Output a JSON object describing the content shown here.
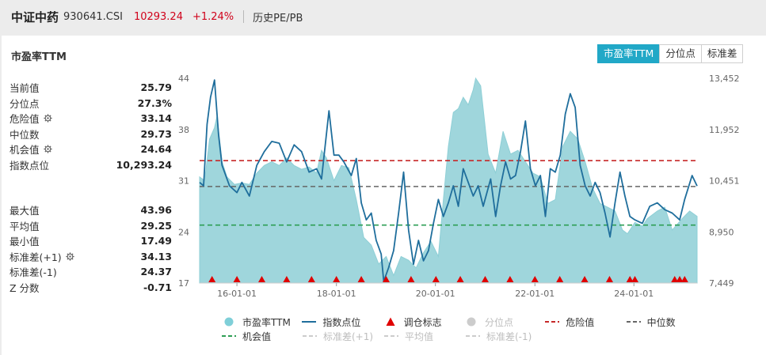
{
  "header": {
    "name": "中证中药",
    "code": "930641.CSI",
    "price": "10293.24",
    "change": "+1.24%",
    "tab": "历史PE/PB"
  },
  "panel": {
    "title": "市盈率TTM",
    "buttons": [
      "市盈率TTM",
      "分位点",
      "标准差"
    ],
    "active_button": "市盈率TTM"
  },
  "stats": {
    "top": [
      {
        "label": "当前值",
        "value": "25.79",
        "gear": false
      },
      {
        "label": "分位点",
        "value": "27.3%",
        "gear": false
      },
      {
        "label": "危险值",
        "value": "33.14",
        "gear": true
      },
      {
        "label": "中位数",
        "value": "29.73",
        "gear": false
      },
      {
        "label": "机会值",
        "value": "24.64",
        "gear": true
      },
      {
        "label": "指数点位",
        "value": "10,293.24",
        "gear": false
      }
    ],
    "bottom": [
      {
        "label": "最大值",
        "value": "43.96",
        "gear": false
      },
      {
        "label": "平均值",
        "value": "29.25",
        "gear": false
      },
      {
        "label": "最小值",
        "value": "17.49",
        "gear": false
      },
      {
        "label": "标准差(+1)",
        "value": "34.13",
        "gear": true
      },
      {
        "label": "标准差(-1)",
        "value": "24.37",
        "gear": false
      },
      {
        "label": "Z 分数",
        "value": "-0.71",
        "gear": false
      }
    ]
  },
  "legend": {
    "row1": [
      {
        "label": "市盈率TTM",
        "type": "dot",
        "color": "#7fcfd8",
        "dim": false
      },
      {
        "label": "指数点位",
        "type": "line",
        "color": "#1f6e9c",
        "dim": false
      },
      {
        "label": "调仓标志",
        "type": "triangle",
        "color": "#e00000",
        "dim": false
      },
      {
        "label": "分位点",
        "type": "dot",
        "color": "#cccccc",
        "dim": true
      },
      {
        "label": "危险值",
        "type": "dash",
        "color": "#c62828",
        "dim": false
      },
      {
        "label": "中位数",
        "type": "dash",
        "color": "#666666",
        "dim": false
      }
    ],
    "row2": [
      {
        "label": "机会值",
        "type": "dash",
        "color": "#2e9e55",
        "dim": false
      },
      {
        "label": "标准差(+1)",
        "type": "dash",
        "color": "#cccccc",
        "dim": true
      },
      {
        "label": "平均值",
        "type": "dash",
        "color": "#cccccc",
        "dim": true
      },
      {
        "label": "标准差(-1)",
        "type": "dash",
        "color": "#cccccc",
        "dim": true
      }
    ]
  },
  "chart_data": {
    "type": "area",
    "left_axis": {
      "ticks": [
        "44",
        "38",
        "31",
        "24",
        "17"
      ],
      "min": 17,
      "max": 44
    },
    "right_axis": {
      "ticks": [
        "13,452",
        "11,952",
        "10,451",
        "8,950",
        "7,449"
      ],
      "min": 7449,
      "max": 13452
    },
    "x_ticks": [
      {
        "label": "16-01-01",
        "t": 0.075
      },
      {
        "label": "18-01-01",
        "t": 0.275
      },
      {
        "label": "20-01-01",
        "t": 0.474
      },
      {
        "label": "22-01-01",
        "t": 0.674
      },
      {
        "label": "24-01-01",
        "t": 0.873
      }
    ],
    "reference_lines": [
      {
        "name": "危险值",
        "value": 33.14,
        "color": "#c62828"
      },
      {
        "name": "中位数",
        "value": 29.73,
        "color": "#666666"
      },
      {
        "name": "机会值",
        "value": 24.64,
        "color": "#2e9e55"
      }
    ],
    "pe_series": [
      [
        0.0,
        31.0
      ],
      [
        0.01,
        30.5
      ],
      [
        0.02,
        36.0
      ],
      [
        0.03,
        37.5
      ],
      [
        0.035,
        39.0
      ],
      [
        0.045,
        33.0
      ],
      [
        0.055,
        31.0
      ],
      [
        0.07,
        30.0
      ],
      [
        0.085,
        30.2
      ],
      [
        0.1,
        30.0
      ],
      [
        0.115,
        31.5
      ],
      [
        0.13,
        32.5
      ],
      [
        0.145,
        33.0
      ],
      [
        0.16,
        32.5
      ],
      [
        0.175,
        33.5
      ],
      [
        0.19,
        32.5
      ],
      [
        0.205,
        32.0
      ],
      [
        0.22,
        32.3
      ],
      [
        0.235,
        31.5
      ],
      [
        0.245,
        34.5
      ],
      [
        0.255,
        33.5
      ],
      [
        0.27,
        30.5
      ],
      [
        0.285,
        32.5
      ],
      [
        0.3,
        32.2
      ],
      [
        0.315,
        28.0
      ],
      [
        0.33,
        23.0
      ],
      [
        0.345,
        22.0
      ],
      [
        0.36,
        19.5
      ],
      [
        0.375,
        20.5
      ],
      [
        0.39,
        18.0
      ],
      [
        0.405,
        20.5
      ],
      [
        0.42,
        20.0
      ],
      [
        0.435,
        19.0
      ],
      [
        0.45,
        21.0
      ],
      [
        0.465,
        22.5
      ],
      [
        0.48,
        20.5
      ],
      [
        0.49,
        28.0
      ],
      [
        0.5,
        35.0
      ],
      [
        0.51,
        39.5
      ],
      [
        0.52,
        40.0
      ],
      [
        0.53,
        41.5
      ],
      [
        0.54,
        40.5
      ],
      [
        0.55,
        42.5
      ],
      [
        0.555,
        44.0
      ],
      [
        0.565,
        43.0
      ],
      [
        0.58,
        34.0
      ],
      [
        0.595,
        31.5
      ],
      [
        0.61,
        37.0
      ],
      [
        0.625,
        34.0
      ],
      [
        0.64,
        34.5
      ],
      [
        0.655,
        33.0
      ],
      [
        0.67,
        31.5
      ],
      [
        0.685,
        31.0
      ],
      [
        0.7,
        27.5
      ],
      [
        0.715,
        28.0
      ],
      [
        0.73,
        35.0
      ],
      [
        0.745,
        37.0
      ],
      [
        0.76,
        36.0
      ],
      [
        0.775,
        33.0
      ],
      [
        0.79,
        29.5
      ],
      [
        0.805,
        27.5
      ],
      [
        0.82,
        27.0
      ],
      [
        0.835,
        26.5
      ],
      [
        0.85,
        24.0
      ],
      [
        0.86,
        23.5
      ],
      [
        0.875,
        25.0
      ],
      [
        0.89,
        24.5
      ],
      [
        0.9,
        25.5
      ],
      [
        0.92,
        26.5
      ],
      [
        0.935,
        27.0
      ],
      [
        0.95,
        24.0
      ],
      [
        0.97,
        25.5
      ],
      [
        0.985,
        26.5
      ],
      [
        1.0,
        25.8
      ]
    ],
    "index_series": [
      [
        0.0,
        10400
      ],
      [
        0.008,
        10300
      ],
      [
        0.015,
        12100
      ],
      [
        0.022,
        12900
      ],
      [
        0.03,
        13400
      ],
      [
        0.038,
        11800
      ],
      [
        0.045,
        10900
      ],
      [
        0.06,
        10300
      ],
      [
        0.075,
        10100
      ],
      [
        0.085,
        10400
      ],
      [
        0.1,
        10000
      ],
      [
        0.115,
        10900
      ],
      [
        0.13,
        11300
      ],
      [
        0.145,
        11600
      ],
      [
        0.16,
        11550
      ],
      [
        0.175,
        11000
      ],
      [
        0.19,
        11500
      ],
      [
        0.205,
        11300
      ],
      [
        0.22,
        10700
      ],
      [
        0.235,
        10800
      ],
      [
        0.245,
        10500
      ],
      [
        0.26,
        12500
      ],
      [
        0.27,
        11200
      ],
      [
        0.28,
        11200
      ],
      [
        0.29,
        11000
      ],
      [
        0.305,
        10600
      ],
      [
        0.315,
        11100
      ],
      [
        0.325,
        9800
      ],
      [
        0.335,
        9300
      ],
      [
        0.345,
        9500
      ],
      [
        0.355,
        8700
      ],
      [
        0.365,
        8300
      ],
      [
        0.37,
        7500
      ],
      [
        0.38,
        7900
      ],
      [
        0.39,
        8400
      ],
      [
        0.4,
        9500
      ],
      [
        0.41,
        10700
      ],
      [
        0.42,
        9000
      ],
      [
        0.43,
        8000
      ],
      [
        0.44,
        8700
      ],
      [
        0.45,
        8100
      ],
      [
        0.46,
        8400
      ],
      [
        0.47,
        9200
      ],
      [
        0.48,
        9900
      ],
      [
        0.49,
        9400
      ],
      [
        0.5,
        9800
      ],
      [
        0.51,
        10300
      ],
      [
        0.52,
        9700
      ],
      [
        0.53,
        10800
      ],
      [
        0.54,
        10400
      ],
      [
        0.55,
        10000
      ],
      [
        0.56,
        10300
      ],
      [
        0.57,
        9700
      ],
      [
        0.585,
        10500
      ],
      [
        0.595,
        9400
      ],
      [
        0.605,
        10300
      ],
      [
        0.615,
        11000
      ],
      [
        0.625,
        10500
      ],
      [
        0.635,
        10600
      ],
      [
        0.645,
        11300
      ],
      [
        0.655,
        12200
      ],
      [
        0.665,
        10800
      ],
      [
        0.675,
        10300
      ],
      [
        0.685,
        10600
      ],
      [
        0.695,
        9400
      ],
      [
        0.705,
        10800
      ],
      [
        0.715,
        10700
      ],
      [
        0.725,
        11200
      ],
      [
        0.735,
        12400
      ],
      [
        0.745,
        13000
      ],
      [
        0.755,
        12600
      ],
      [
        0.765,
        10900
      ],
      [
        0.775,
        10300
      ],
      [
        0.785,
        10000
      ],
      [
        0.795,
        10400
      ],
      [
        0.805,
        10100
      ],
      [
        0.815,
        9500
      ],
      [
        0.825,
        8800
      ],
      [
        0.835,
        9800
      ],
      [
        0.845,
        10700
      ],
      [
        0.855,
        10000
      ],
      [
        0.865,
        9400
      ],
      [
        0.875,
        9300
      ],
      [
        0.89,
        9200
      ],
      [
        0.905,
        9700
      ],
      [
        0.92,
        9800
      ],
      [
        0.935,
        9600
      ],
      [
        0.95,
        9500
      ],
      [
        0.965,
        9300
      ],
      [
        0.975,
        9900
      ],
      [
        0.99,
        10600
      ],
      [
        1.0,
        10293
      ]
    ],
    "rebalance_markers": [
      0.025,
      0.075,
      0.125,
      0.175,
      0.225,
      0.275,
      0.325,
      0.375,
      0.425,
      0.475,
      0.524,
      0.574,
      0.624,
      0.674,
      0.724,
      0.774,
      0.824,
      0.865,
      0.875,
      0.955,
      0.965,
      0.975
    ]
  }
}
